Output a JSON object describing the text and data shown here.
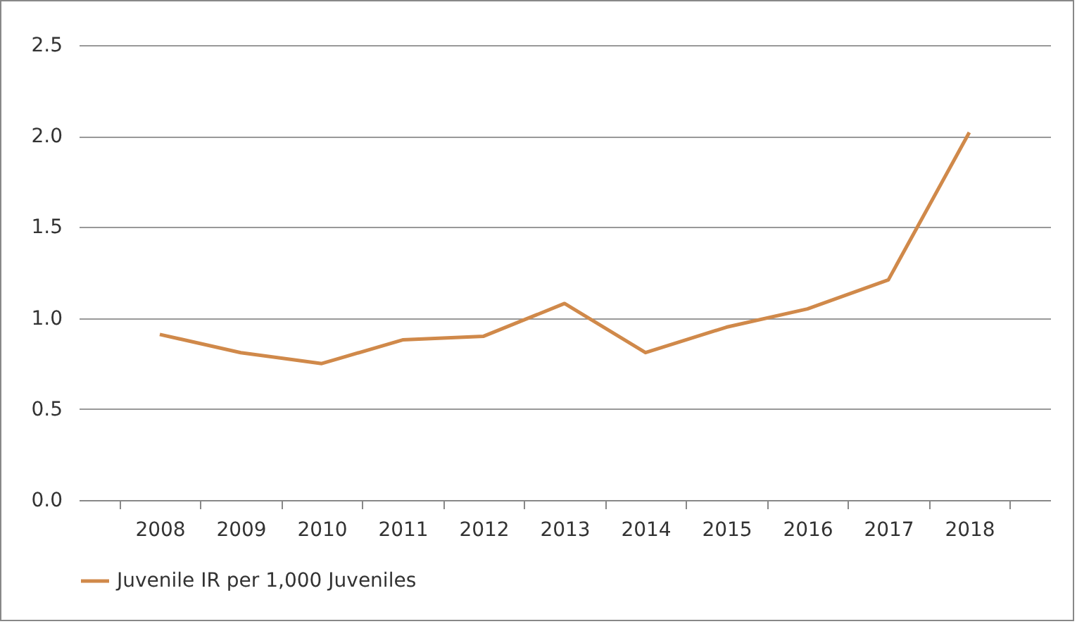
{
  "chart_data": {
    "type": "line",
    "categories": [
      "2008",
      "2009",
      "2010",
      "2011",
      "2012",
      "2013",
      "2014",
      "2015",
      "2016",
      "2017",
      "2018"
    ],
    "series": [
      {
        "name": "Juvenile IR per 1,000 Juveniles",
        "color": "#d0894a",
        "values": [
          0.91,
          0.81,
          0.75,
          0.88,
          0.9,
          1.08,
          0.81,
          0.95,
          1.05,
          1.21,
          2.02
        ]
      }
    ],
    "ylim": [
      0,
      2.5
    ],
    "yticks": [
      {
        "value": 0,
        "label": "0.0"
      },
      0.5,
      {
        "value": 1,
        "label": "1.0"
      },
      1.5,
      {
        "value": 2,
        "label": "2.0"
      },
      2.5
    ],
    "grid": "y",
    "legend": "bottom",
    "marker": "none",
    "line_style": "solid"
  }
}
